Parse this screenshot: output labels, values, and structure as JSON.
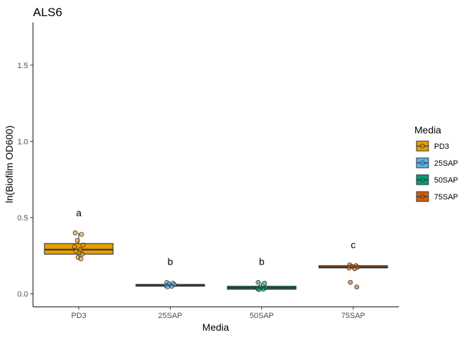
{
  "chart_data": {
    "type": "boxplot",
    "title": "ALS6",
    "xlabel": "Media",
    "ylabel": "ln(Biofilm OD600)",
    "ylim": [
      -0.085,
      1.78
    ],
    "yticks": [
      0.0,
      0.5,
      1.0,
      1.5
    ],
    "ytick_labels": [
      "0.0",
      "0.5",
      "1.0",
      "1.5"
    ],
    "grid": false,
    "legend": {
      "title": "Media",
      "position": "right"
    },
    "categories": [
      "PD3",
      "25SAP",
      "50SAP",
      "75SAP"
    ],
    "colors": [
      "#E69F00",
      "#56B4E9",
      "#009E73",
      "#D55E00"
    ],
    "boxes": [
      {
        "q1": 0.26,
        "median": 0.29,
        "q3": 0.33,
        "whisker_low": 0.23,
        "whisker_high": 0.4
      },
      {
        "q1": 0.05,
        "median": 0.057,
        "q3": 0.062,
        "whisker_low": 0.045,
        "whisker_high": 0.075
      },
      {
        "q1": 0.03,
        "median": 0.04,
        "q3": 0.05,
        "whisker_low": 0.028,
        "whisker_high": 0.075
      },
      {
        "q1": 0.17,
        "median": 0.175,
        "q3": 0.185,
        "whisker_low": 0.165,
        "whisker_high": 0.19
      }
    ],
    "points": [
      [
        0.4,
        0.39,
        0.35,
        0.32,
        0.31,
        0.29,
        0.28,
        0.26,
        0.24,
        0.23
      ],
      [
        0.075,
        0.07,
        0.065,
        0.06,
        0.055,
        0.05,
        0.045
      ],
      [
        0.075,
        0.07,
        0.045,
        0.04,
        0.035,
        0.03,
        0.028
      ],
      [
        0.19,
        0.185,
        0.18,
        0.175,
        0.17,
        0.165,
        0.075,
        0.045
      ]
    ],
    "annotations": [
      {
        "category": "PD3",
        "text": "a",
        "y": 0.51
      },
      {
        "category": "25SAP",
        "text": "b",
        "y": 0.19
      },
      {
        "category": "50SAP",
        "text": "b",
        "y": 0.19
      },
      {
        "category": "75SAP",
        "text": "c",
        "y": 0.3
      }
    ]
  }
}
